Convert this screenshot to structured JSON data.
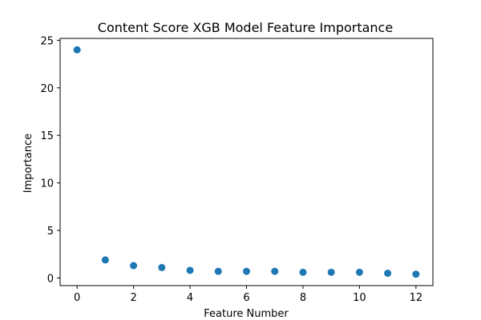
{
  "chart_data": {
    "type": "scatter",
    "title": "Content Score XGB Model Feature Importance",
    "xlabel": "Feature Number",
    "ylabel": "Importance",
    "x": [
      0,
      1,
      2,
      3,
      4,
      5,
      6,
      7,
      8,
      9,
      10,
      11,
      12
    ],
    "y": [
      24.0,
      1.9,
      1.3,
      1.1,
      0.8,
      0.7,
      0.7,
      0.7,
      0.6,
      0.6,
      0.6,
      0.5,
      0.4
    ],
    "xlim": [
      -0.6,
      12.6
    ],
    "ylim": [
      -0.8,
      25.2
    ],
    "xticks": [
      0,
      2,
      4,
      6,
      8,
      10,
      12
    ],
    "yticks": [
      0,
      5,
      10,
      15,
      20,
      25
    ],
    "grid": false,
    "marker_color": "#1f77b4"
  }
}
